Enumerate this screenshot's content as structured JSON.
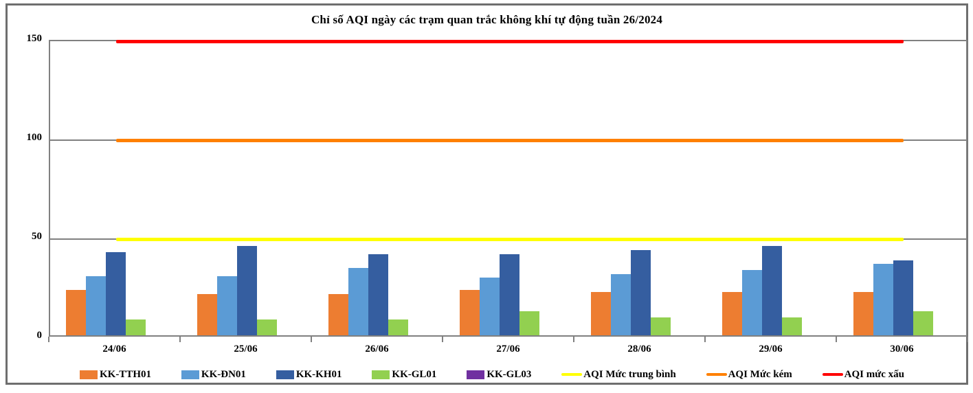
{
  "chart_data": {
    "type": "bar",
    "title": "Chỉ số AQI ngày các trạm quan trắc không khí tự động tuần 26/2024",
    "categories": [
      "24/06",
      "25/06",
      "26/06",
      "27/06",
      "28/06",
      "29/06",
      "30/06"
    ],
    "series": [
      {
        "name": "KK-TTH01",
        "color": "#ED7D31",
        "values": [
          23,
          21,
          21,
          23,
          22,
          22,
          22
        ]
      },
      {
        "name": "KK-ĐN01",
        "color": "#5B9BD5",
        "values": [
          30,
          30,
          34,
          29,
          31,
          33,
          36
        ]
      },
      {
        "name": "KK-KH01",
        "color": "#355EA0",
        "values": [
          42,
          45,
          41,
          41,
          43,
          45,
          38
        ]
      },
      {
        "name": "KK-GL01",
        "color": "#92D050",
        "values": [
          8,
          8,
          8,
          12,
          9,
          9,
          12
        ]
      },
      {
        "name": "KK-GL03",
        "color": "#7030A0",
        "values": [
          0,
          0,
          0,
          0,
          0,
          0,
          0
        ]
      }
    ],
    "threshold_lines": [
      {
        "name": "AQI Mức trung bình",
        "color": "#FFFF00",
        "value": 50
      },
      {
        "name": "AQI Mức kém",
        "color": "#FF8000",
        "value": 100
      },
      {
        "name": "AQI mức xấu",
        "color": "#FF0000",
        "value": 150
      }
    ],
    "xlabel": "",
    "ylabel": "",
    "ylim": [
      0,
      150
    ],
    "yticks": [
      0,
      50,
      100,
      150
    ],
    "grid": true,
    "grid_color": "#808080",
    "legend_position": "bottom"
  }
}
